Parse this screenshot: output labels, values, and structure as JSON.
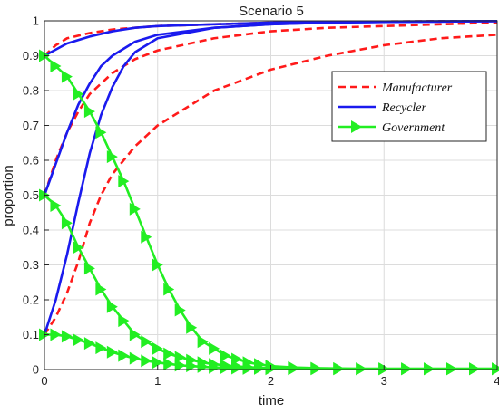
{
  "chart_data": {
    "type": "line",
    "title": "Scenario 5",
    "xlabel": "time",
    "ylabel": "proportion",
    "xlim": [
      0,
      4
    ],
    "ylim": [
      0,
      1
    ],
    "xticks": [
      0,
      1,
      2,
      3,
      4
    ],
    "yticks": [
      0,
      0.1,
      0.2,
      0.3,
      0.4,
      0.5,
      0.6,
      0.7,
      0.8,
      0.9,
      1
    ],
    "grid": true,
    "legend_position": "top-right",
    "colors": {
      "Manufacturer": "#ff1a1a",
      "Recycler": "#1a1aee",
      "Government": "#22ee22"
    },
    "series": [
      {
        "name": "Manufacturer",
        "group": 1,
        "x": [
          0,
          0.1,
          0.2,
          0.4,
          0.6,
          0.8,
          1,
          1.5,
          2,
          2.5,
          3,
          3.5,
          4
        ],
        "y": [
          0.9,
          0.93,
          0.95,
          0.965,
          0.975,
          0.98,
          0.985,
          0.99,
          0.995,
          0.997,
          0.998,
          0.999,
          0.999
        ]
      },
      {
        "name": "Manufacturer",
        "group": 2,
        "x": [
          0,
          0.1,
          0.2,
          0.3,
          0.4,
          0.6,
          0.8,
          1,
          1.5,
          2,
          2.5,
          3,
          3.5,
          4
        ],
        "y": [
          0.5,
          0.6,
          0.68,
          0.74,
          0.79,
          0.85,
          0.89,
          0.915,
          0.95,
          0.97,
          0.98,
          0.985,
          0.99,
          0.995
        ]
      },
      {
        "name": "Manufacturer",
        "group": 3,
        "x": [
          0,
          0.1,
          0.2,
          0.3,
          0.4,
          0.5,
          0.6,
          0.8,
          1,
          1.5,
          2,
          2.5,
          3,
          3.5,
          4
        ],
        "y": [
          0.1,
          0.15,
          0.22,
          0.31,
          0.42,
          0.5,
          0.56,
          0.64,
          0.7,
          0.8,
          0.86,
          0.9,
          0.93,
          0.95,
          0.96
        ]
      },
      {
        "name": "Recycler",
        "group": 1,
        "x": [
          0,
          0.2,
          0.4,
          0.6,
          0.8,
          1,
          1.5,
          2,
          2.5,
          3,
          3.5,
          4
        ],
        "y": [
          0.9,
          0.935,
          0.955,
          0.97,
          0.98,
          0.985,
          0.99,
          0.995,
          0.997,
          0.998,
          0.999,
          0.999
        ]
      },
      {
        "name": "Recycler",
        "group": 2,
        "x": [
          0,
          0.1,
          0.2,
          0.3,
          0.4,
          0.5,
          0.6,
          0.8,
          1,
          1.5,
          2,
          2.5,
          3,
          3.5,
          4
        ],
        "y": [
          0.5,
          0.59,
          0.68,
          0.76,
          0.82,
          0.87,
          0.9,
          0.94,
          0.96,
          0.98,
          0.99,
          0.995,
          0.997,
          0.998,
          0.999
        ]
      },
      {
        "name": "Recycler",
        "group": 3,
        "x": [
          0,
          0.1,
          0.2,
          0.3,
          0.4,
          0.5,
          0.6,
          0.7,
          0.8,
          1,
          1.5,
          2,
          2.5,
          3,
          3.5,
          4
        ],
        "y": [
          0.1,
          0.2,
          0.33,
          0.48,
          0.62,
          0.73,
          0.81,
          0.87,
          0.91,
          0.95,
          0.98,
          0.99,
          0.995,
          0.997,
          0.998,
          0.999
        ]
      },
      {
        "name": "Government",
        "group": 1,
        "x": [
          0,
          0.1,
          0.2,
          0.3,
          0.4,
          0.5,
          0.6,
          0.7,
          0.8,
          0.9,
          1,
          1.1,
          1.2,
          1.3,
          1.4,
          1.5,
          1.6,
          1.7,
          1.8,
          1.9,
          2,
          2.2,
          2.4,
          2.6,
          2.8,
          3,
          3.2,
          3.4,
          3.6,
          3.8,
          4
        ],
        "y": [
          0.9,
          0.87,
          0.84,
          0.79,
          0.74,
          0.68,
          0.61,
          0.54,
          0.46,
          0.38,
          0.3,
          0.23,
          0.17,
          0.12,
          0.08,
          0.06,
          0.04,
          0.03,
          0.02,
          0.015,
          0.01,
          0.006,
          0.004,
          0.003,
          0.002,
          0.002,
          0.002,
          0.002,
          0.002,
          0.002,
          0.002
        ]
      },
      {
        "name": "Government",
        "group": 2,
        "x": [
          0,
          0.1,
          0.2,
          0.3,
          0.4,
          0.5,
          0.6,
          0.7,
          0.8,
          0.9,
          1,
          1.1,
          1.2,
          1.3,
          1.4,
          1.5,
          1.6,
          1.7,
          1.8,
          1.9,
          2,
          2.2,
          2.4,
          2.6,
          2.8,
          3,
          3.2,
          3.4,
          3.6,
          3.8,
          4
        ],
        "y": [
          0.5,
          0.47,
          0.42,
          0.35,
          0.29,
          0.23,
          0.18,
          0.14,
          0.1,
          0.08,
          0.06,
          0.045,
          0.035,
          0.027,
          0.02,
          0.015,
          0.012,
          0.009,
          0.007,
          0.005,
          0.004,
          0.003,
          0.002,
          0.002,
          0.002,
          0.002,
          0.002,
          0.002,
          0.002,
          0.002,
          0.002
        ]
      },
      {
        "name": "Government",
        "group": 3,
        "x": [
          0,
          0.1,
          0.2,
          0.3,
          0.4,
          0.5,
          0.6,
          0.7,
          0.8,
          0.9,
          1,
          1.1,
          1.2,
          1.3,
          1.4,
          1.5,
          1.6,
          1.7,
          1.8,
          1.9,
          2,
          2.2,
          2.4,
          2.6,
          2.8,
          3,
          3.2,
          3.4,
          3.6,
          3.8,
          4
        ],
        "y": [
          0.1,
          0.1,
          0.095,
          0.085,
          0.075,
          0.062,
          0.05,
          0.04,
          0.032,
          0.025,
          0.02,
          0.016,
          0.012,
          0.01,
          0.008,
          0.006,
          0.005,
          0.004,
          0.003,
          0.003,
          0.002,
          0.002,
          0.002,
          0.002,
          0.002,
          0.002,
          0.002,
          0.002,
          0.002,
          0.002,
          0.002
        ]
      }
    ]
  }
}
